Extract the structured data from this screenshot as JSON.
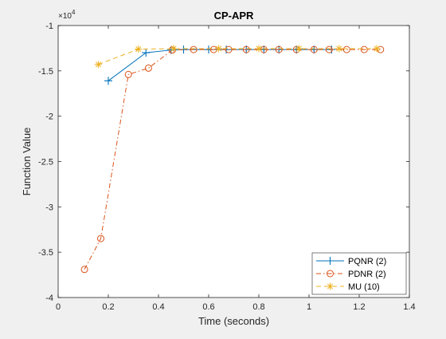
{
  "figure": {
    "background": "#f0f0f0",
    "axes_background": "#ffffff"
  },
  "chart_data": {
    "type": "line",
    "title": "CP-APR",
    "xlabel": "Time (seconds)",
    "ylabel": "Function Value",
    "y_exponent_label": "×10",
    "y_exponent_power": "4",
    "xlim": [
      0,
      1.4
    ],
    "ylim": [
      -4,
      -1
    ],
    "y_scale_note": "values shown in units of 10^4",
    "xticks": [
      0,
      0.2,
      0.4,
      0.6,
      0.8,
      1.0,
      1.2,
      1.4
    ],
    "xtick_labels": [
      "0",
      "0.2",
      "0.4",
      "0.6",
      "0.8",
      "1",
      "1.2",
      "1.4"
    ],
    "yticks": [
      -4,
      -3.5,
      -3,
      -2.5,
      -2,
      -1.5,
      -1
    ],
    "ytick_labels": [
      "-4",
      "-3.5",
      "-3",
      "-2.5",
      "-2",
      "-1.5",
      "-1"
    ],
    "grid": false,
    "legend_position": "bottom-right",
    "series": [
      {
        "name": "PQNR (2)",
        "color": "#0072bd",
        "linestyle": "solid",
        "marker": "plus",
        "x": [
          0.2,
          0.35,
          0.45,
          0.5,
          0.6,
          0.67,
          0.75,
          0.82,
          0.88,
          0.95,
          1.02,
          1.09
        ],
        "y": [
          -1.61,
          -1.3,
          -1.27,
          -1.265,
          -1.265,
          -1.265,
          -1.265,
          -1.265,
          -1.265,
          -1.265,
          -1.265,
          -1.265
        ]
      },
      {
        "name": "PDNR (2)",
        "color": "#d95319",
        "linestyle": "dashdot",
        "marker": "circle",
        "x": [
          0.105,
          0.17,
          0.28,
          0.36,
          0.455,
          0.54,
          0.62,
          0.68,
          0.75,
          0.82,
          0.88,
          0.95,
          1.02,
          1.08,
          1.15,
          1.22,
          1.285
        ],
        "y": [
          -3.69,
          -3.35,
          -1.54,
          -1.47,
          -1.27,
          -1.265,
          -1.265,
          -1.265,
          -1.265,
          -1.265,
          -1.265,
          -1.265,
          -1.265,
          -1.265,
          -1.265,
          -1.265,
          -1.265
        ]
      },
      {
        "name": "MU (10)",
        "color": "#edb120",
        "linestyle": "dashed",
        "marker": "asterisk",
        "x": [
          0.16,
          0.32,
          0.46,
          0.64,
          0.8,
          0.96,
          1.12,
          1.27
        ],
        "y": [
          -1.43,
          -1.26,
          -1.255,
          -1.255,
          -1.255,
          -1.255,
          -1.255,
          -1.255
        ]
      }
    ]
  }
}
